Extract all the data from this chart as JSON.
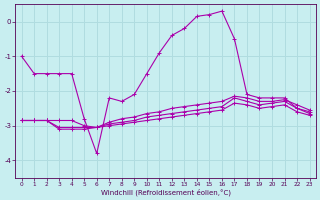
{
  "xlabel": "Windchill (Refroidissement éolien,°C)",
  "background_color": "#c8eef0",
  "grid_color": "#b0dce0",
  "line_color": "#aa00aa",
  "x": [
    0,
    1,
    2,
    3,
    4,
    5,
    6,
    7,
    8,
    9,
    10,
    11,
    12,
    13,
    14,
    15,
    16,
    17,
    18,
    19,
    20,
    21,
    22,
    23
  ],
  "s1": [
    -1.0,
    -1.5,
    -1.5,
    -1.5,
    -1.5,
    -2.8,
    -3.8,
    -2.2,
    -2.3,
    -2.1,
    -1.5,
    -0.9,
    -0.4,
    -0.2,
    0.15,
    0.2,
    0.3,
    -0.5,
    -2.1,
    -2.2,
    -2.2,
    -2.2,
    -2.5,
    -2.6
  ],
  "s2": [
    -2.85,
    -2.85,
    -2.85,
    -3.1,
    -3.1,
    -3.1,
    -3.05,
    -2.95,
    -2.9,
    -2.85,
    -2.75,
    -2.7,
    -2.65,
    -2.6,
    -2.55,
    -2.5,
    -2.45,
    -2.2,
    -2.3,
    -2.4,
    -2.35,
    -2.3,
    -2.5,
    -2.65
  ],
  "s3": [
    -2.85,
    -2.85,
    -2.85,
    -2.85,
    -2.85,
    -3.0,
    -3.05,
    -2.9,
    -2.8,
    -2.75,
    -2.65,
    -2.6,
    -2.5,
    -2.45,
    -2.4,
    -2.35,
    -2.3,
    -2.15,
    -2.2,
    -2.3,
    -2.3,
    -2.25,
    -2.4,
    -2.55
  ],
  "s4": [
    -2.85,
    -2.85,
    -2.85,
    -3.05,
    -3.05,
    -3.05,
    -3.05,
    -3.0,
    -2.95,
    -2.9,
    -2.85,
    -2.8,
    -2.75,
    -2.7,
    -2.65,
    -2.6,
    -2.55,
    -2.35,
    -2.4,
    -2.5,
    -2.45,
    -2.4,
    -2.6,
    -2.7
  ],
  "ylim": [
    -4.5,
    0.5
  ],
  "xlim": [
    -0.5,
    23.5
  ],
  "yticks": [
    0,
    -1,
    -2,
    -3,
    -4
  ],
  "xticks": [
    0,
    1,
    2,
    3,
    4,
    5,
    6,
    7,
    8,
    9,
    10,
    11,
    12,
    13,
    14,
    15,
    16,
    17,
    18,
    19,
    20,
    21,
    22,
    23
  ]
}
